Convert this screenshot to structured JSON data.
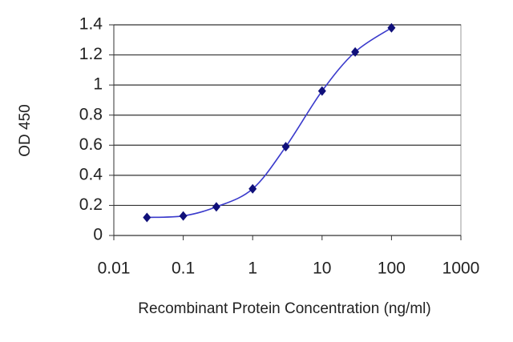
{
  "chart_data": {
    "type": "line",
    "xlabel": "Recombinant Protein Concentration (ng/ml)",
    "ylabel": "OD 450",
    "xscale": "log",
    "x": [
      0.03,
      0.1,
      0.3,
      1,
      3,
      10,
      30,
      100
    ],
    "series": [
      {
        "color": "#3a3acc",
        "marker_color": "#10107a",
        "values": [
          0.12,
          0.13,
          0.19,
          0.31,
          0.59,
          0.96,
          1.22,
          1.38
        ]
      }
    ],
    "xlim": [
      0.01,
      1000
    ],
    "xticks": [
      0.01,
      0.1,
      1,
      10,
      100,
      1000
    ],
    "ylim": [
      0,
      1.4
    ],
    "yticks": [
      0,
      0.2,
      0.4,
      0.6,
      0.8,
      1,
      1.2,
      1.4
    ],
    "grid": true
  }
}
